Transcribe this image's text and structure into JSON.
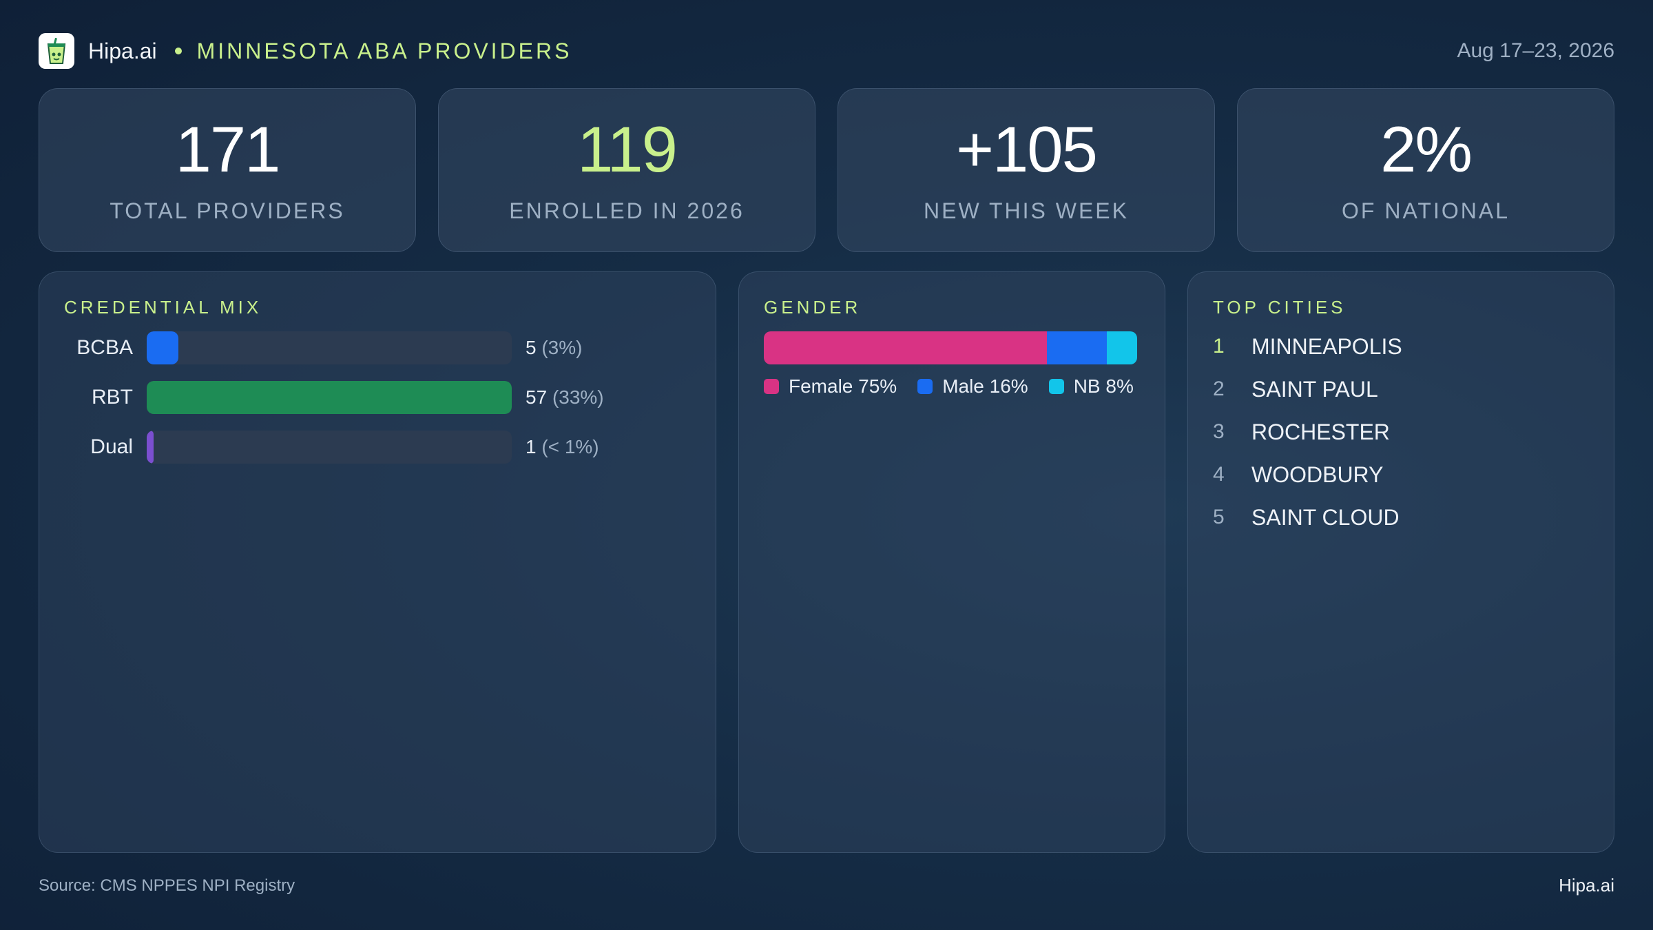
{
  "header": {
    "brand": "Hipa.ai",
    "subtitle": "MINNESOTA ABA PROVIDERS",
    "date_range": "Aug 17–23, 2026",
    "logo_icon": "drink-cup-icon"
  },
  "kpis": [
    {
      "value": "171",
      "label": "TOTAL PROVIDERS",
      "accent": false
    },
    {
      "value": "119",
      "label": "ENROLLED IN 2026",
      "accent": true
    },
    {
      "value": "+105",
      "label": "NEW THIS WEEK",
      "accent": false
    },
    {
      "value": "2%",
      "label": "OF NATIONAL",
      "accent": false
    }
  ],
  "colors": {
    "accent": "#c9f08c",
    "bcba": "#1a6cf2",
    "rbt": "#1e8c55",
    "dual": "#7b4fd0",
    "female": "#d93384",
    "male": "#1a6cf2",
    "nb": "#12c5ea"
  },
  "chart_data": [
    {
      "type": "bar",
      "title": "CREDENTIAL MIX",
      "orientation": "horizontal",
      "categories": [
        "BCBA",
        "RBT",
        "Dual"
      ],
      "values": [
        5,
        57,
        1
      ],
      "value_labels": [
        "5",
        "57",
        "1"
      ],
      "percent_labels": [
        "(3%)",
        "(33%)",
        "(< 1%)"
      ],
      "xlim": [
        0,
        57
      ]
    },
    {
      "type": "bar",
      "title": "GENDER",
      "orientation": "stacked-horizontal",
      "series": [
        {
          "name": "Female",
          "value": 75,
          "legend": "Female 75%"
        },
        {
          "name": "Male",
          "value": 16,
          "legend": "Male 16%"
        },
        {
          "name": "NB",
          "value": 8,
          "legend": "NB 8%"
        }
      ],
      "legend_position": "bottom"
    },
    {
      "type": "table",
      "title": "TOP CITIES",
      "rows": [
        {
          "rank": "1",
          "city": "MINNEAPOLIS"
        },
        {
          "rank": "2",
          "city": "SAINT PAUL"
        },
        {
          "rank": "3",
          "city": "ROCHESTER"
        },
        {
          "rank": "4",
          "city": "WOODBURY"
        },
        {
          "rank": "5",
          "city": "SAINT CLOUD"
        }
      ]
    }
  ],
  "footer": {
    "source": "Source: CMS NPPES NPI Registry",
    "brand": "Hipa.ai"
  }
}
